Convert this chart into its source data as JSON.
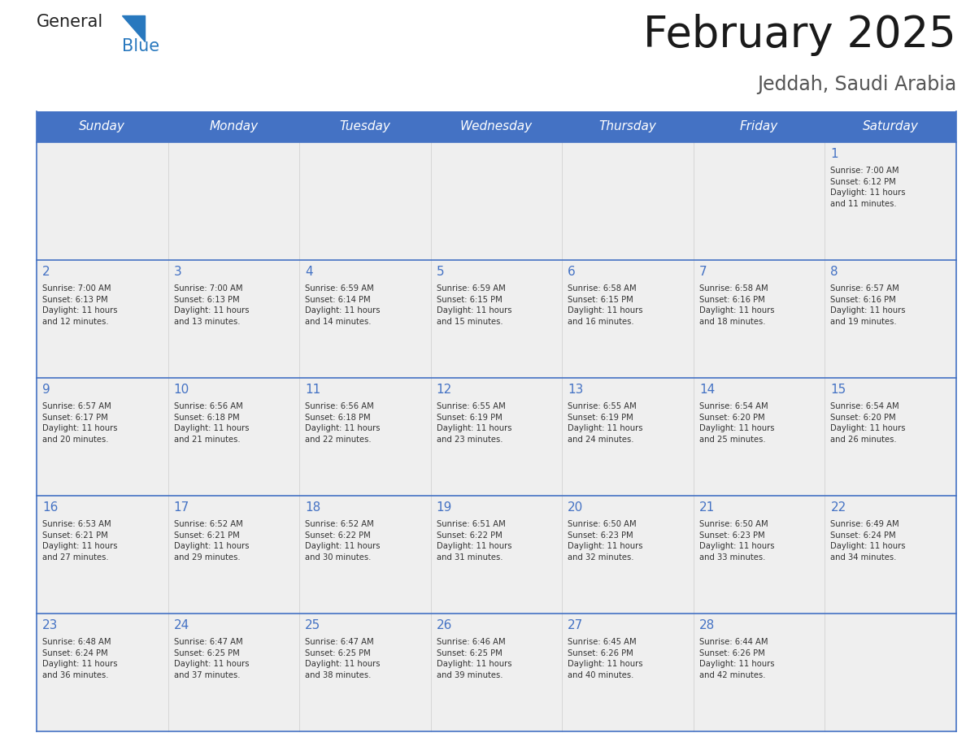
{
  "title": "February 2025",
  "subtitle": "Jeddah, Saudi Arabia",
  "days_of_week": [
    "Sunday",
    "Monday",
    "Tuesday",
    "Wednesday",
    "Thursday",
    "Friday",
    "Saturday"
  ],
  "header_bg": "#4472C4",
  "header_text": "#FFFFFF",
  "cell_bg_gray": "#EFEFEF",
  "cell_bg_white": "#FFFFFF",
  "border_color": "#4472C4",
  "title_color": "#1a1a1a",
  "subtitle_color": "#555555",
  "day_number_color": "#4472C4",
  "cell_text_color": "#333333",
  "logo_general_color": "#222222",
  "logo_blue_color": "#2878BE",
  "calendar_data": [
    [
      {
        "day": null,
        "info": null
      },
      {
        "day": null,
        "info": null
      },
      {
        "day": null,
        "info": null
      },
      {
        "day": null,
        "info": null
      },
      {
        "day": null,
        "info": null
      },
      {
        "day": null,
        "info": null
      },
      {
        "day": 1,
        "info": "Sunrise: 7:00 AM\nSunset: 6:12 PM\nDaylight: 11 hours\nand 11 minutes."
      }
    ],
    [
      {
        "day": 2,
        "info": "Sunrise: 7:00 AM\nSunset: 6:13 PM\nDaylight: 11 hours\nand 12 minutes."
      },
      {
        "day": 3,
        "info": "Sunrise: 7:00 AM\nSunset: 6:13 PM\nDaylight: 11 hours\nand 13 minutes."
      },
      {
        "day": 4,
        "info": "Sunrise: 6:59 AM\nSunset: 6:14 PM\nDaylight: 11 hours\nand 14 minutes."
      },
      {
        "day": 5,
        "info": "Sunrise: 6:59 AM\nSunset: 6:15 PM\nDaylight: 11 hours\nand 15 minutes."
      },
      {
        "day": 6,
        "info": "Sunrise: 6:58 AM\nSunset: 6:15 PM\nDaylight: 11 hours\nand 16 minutes."
      },
      {
        "day": 7,
        "info": "Sunrise: 6:58 AM\nSunset: 6:16 PM\nDaylight: 11 hours\nand 18 minutes."
      },
      {
        "day": 8,
        "info": "Sunrise: 6:57 AM\nSunset: 6:16 PM\nDaylight: 11 hours\nand 19 minutes."
      }
    ],
    [
      {
        "day": 9,
        "info": "Sunrise: 6:57 AM\nSunset: 6:17 PM\nDaylight: 11 hours\nand 20 minutes."
      },
      {
        "day": 10,
        "info": "Sunrise: 6:56 AM\nSunset: 6:18 PM\nDaylight: 11 hours\nand 21 minutes."
      },
      {
        "day": 11,
        "info": "Sunrise: 6:56 AM\nSunset: 6:18 PM\nDaylight: 11 hours\nand 22 minutes."
      },
      {
        "day": 12,
        "info": "Sunrise: 6:55 AM\nSunset: 6:19 PM\nDaylight: 11 hours\nand 23 minutes."
      },
      {
        "day": 13,
        "info": "Sunrise: 6:55 AM\nSunset: 6:19 PM\nDaylight: 11 hours\nand 24 minutes."
      },
      {
        "day": 14,
        "info": "Sunrise: 6:54 AM\nSunset: 6:20 PM\nDaylight: 11 hours\nand 25 minutes."
      },
      {
        "day": 15,
        "info": "Sunrise: 6:54 AM\nSunset: 6:20 PM\nDaylight: 11 hours\nand 26 minutes."
      }
    ],
    [
      {
        "day": 16,
        "info": "Sunrise: 6:53 AM\nSunset: 6:21 PM\nDaylight: 11 hours\nand 27 minutes."
      },
      {
        "day": 17,
        "info": "Sunrise: 6:52 AM\nSunset: 6:21 PM\nDaylight: 11 hours\nand 29 minutes."
      },
      {
        "day": 18,
        "info": "Sunrise: 6:52 AM\nSunset: 6:22 PM\nDaylight: 11 hours\nand 30 minutes."
      },
      {
        "day": 19,
        "info": "Sunrise: 6:51 AM\nSunset: 6:22 PM\nDaylight: 11 hours\nand 31 minutes."
      },
      {
        "day": 20,
        "info": "Sunrise: 6:50 AM\nSunset: 6:23 PM\nDaylight: 11 hours\nand 32 minutes."
      },
      {
        "day": 21,
        "info": "Sunrise: 6:50 AM\nSunset: 6:23 PM\nDaylight: 11 hours\nand 33 minutes."
      },
      {
        "day": 22,
        "info": "Sunrise: 6:49 AM\nSunset: 6:24 PM\nDaylight: 11 hours\nand 34 minutes."
      }
    ],
    [
      {
        "day": 23,
        "info": "Sunrise: 6:48 AM\nSunset: 6:24 PM\nDaylight: 11 hours\nand 36 minutes."
      },
      {
        "day": 24,
        "info": "Sunrise: 6:47 AM\nSunset: 6:25 PM\nDaylight: 11 hours\nand 37 minutes."
      },
      {
        "day": 25,
        "info": "Sunrise: 6:47 AM\nSunset: 6:25 PM\nDaylight: 11 hours\nand 38 minutes."
      },
      {
        "day": 26,
        "info": "Sunrise: 6:46 AM\nSunset: 6:25 PM\nDaylight: 11 hours\nand 39 minutes."
      },
      {
        "day": 27,
        "info": "Sunrise: 6:45 AM\nSunset: 6:26 PM\nDaylight: 11 hours\nand 40 minutes."
      },
      {
        "day": 28,
        "info": "Sunrise: 6:44 AM\nSunset: 6:26 PM\nDaylight: 11 hours\nand 42 minutes."
      },
      {
        "day": null,
        "info": null
      }
    ]
  ],
  "fig_width": 11.88,
  "fig_height": 9.18,
  "dpi": 100
}
